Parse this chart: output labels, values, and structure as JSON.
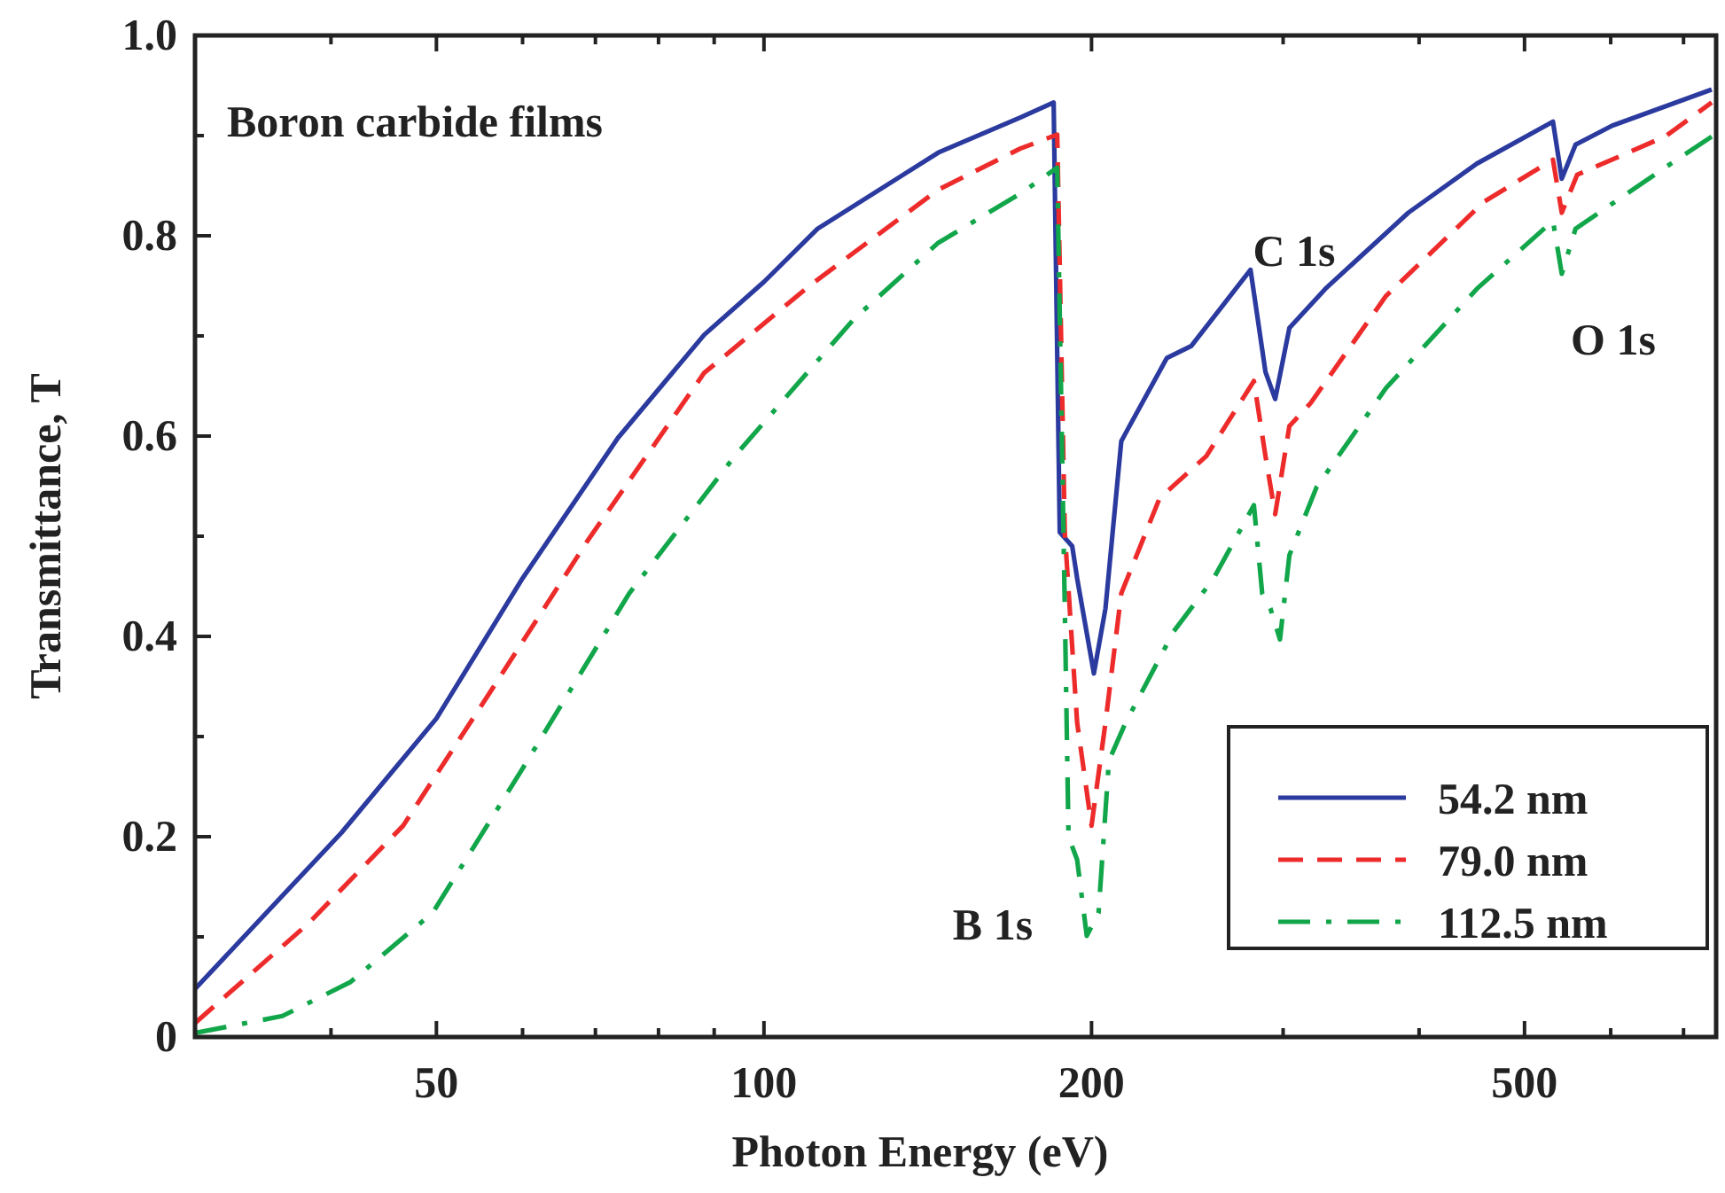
{
  "chart_data": {
    "type": "line",
    "title": "Boron carbide films",
    "xlabel": "Photon Energy (eV)",
    "ylabel": "Transmittance, T",
    "log": "x",
    "grid": false,
    "legend": "bottom right",
    "xlim": [
      30,
      750
    ],
    "xticks": [
      {
        "value": 30,
        "label": null
      },
      {
        "value": 40,
        "label": null
      },
      50,
      {
        "value": 60,
        "label": null
      },
      {
        "value": 70,
        "label": null
      },
      {
        "value": 80,
        "label": null
      },
      {
        "value": 90,
        "label": null
      },
      100,
      200,
      {
        "value": 300,
        "label": null
      },
      {
        "value": 400,
        "label": null
      },
      500,
      {
        "value": 600,
        "label": null
      },
      {
        "value": 700,
        "label": null
      }
    ],
    "ylim": [
      0,
      1
    ],
    "yticks": [
      0,
      {
        "value": 0.1,
        "label": null
      },
      0.2,
      {
        "value": 0.3,
        "label": null
      },
      0.4,
      {
        "value": 0.5,
        "label": null
      },
      0.6,
      {
        "value": 0.7,
        "label": null
      },
      0.8,
      {
        "value": 0.9,
        "label": null
      },
      {
        "value": 1,
        "label": "1.0"
      }
    ],
    "annotations": [
      "B 1s",
      "C 1s",
      "O 1s"
    ],
    "series": [
      {
        "name": "54.2 nm",
        "color": "#2b3a9e",
        "line_style": "solid",
        "x": [
          30,
          40.9,
          50,
          60,
          73.4,
          88.1,
          100,
          112,
          144.6,
          172,
          184.6,
          187,
          192,
          194,
          201,
          206,
          213,
          234.6,
          247,
          280,
          289,
          295,
          304,
          328,
          391,
          452,
          531,
          541,
          557,
          602,
          743
        ],
        "values": [
          0.048,
          0.204,
          0.318,
          0.458,
          0.598,
          0.701,
          0.754,
          0.807,
          0.883,
          0.918,
          0.933,
          0.504,
          0.49,
          0.458,
          0.363,
          0.428,
          0.595,
          0.678,
          0.69,
          0.766,
          0.664,
          0.637,
          0.708,
          0.747,
          0.823,
          0.872,
          0.914,
          0.857,
          0.891,
          0.91,
          0.946
        ]
      },
      {
        "name": "79.0 nm",
        "color": "#ee2b2b",
        "line_style": "dashed",
        "x": [
          30,
          38.1,
          46.6,
          56.3,
          68.9,
          88.1,
          110.4,
          144.6,
          172,
          186,
          189,
          194,
          200,
          206,
          213,
          231,
          255,
          282,
          289,
          295,
          304,
          318,
          373,
          459,
          531,
          541,
          559,
          673,
          743
        ],
        "values": [
          0.014,
          0.113,
          0.211,
          0.348,
          0.496,
          0.663,
          0.751,
          0.846,
          0.887,
          0.901,
          0.504,
          0.314,
          0.211,
          0.314,
          0.443,
          0.538,
          0.58,
          0.655,
          0.58,
          0.522,
          0.61,
          0.633,
          0.74,
          0.834,
          0.876,
          0.823,
          0.861,
          0.899,
          0.933
        ]
      },
      {
        "name": "112.5 nm",
        "color": "#12a64a",
        "line_style": "dashed",
        "x": [
          30,
          36.1,
          41.7,
          49.6,
          60,
          75.2,
          94,
          121,
          144.6,
          172,
          186,
          189,
          190.5,
          194,
          198,
          203,
          207.5,
          215,
          238,
          259,
          282,
          287,
          292,
          298,
          304,
          322,
          373,
          452,
          531,
          541,
          557,
          673,
          743
        ],
        "values": [
          0.004,
          0.021,
          0.055,
          0.124,
          0.268,
          0.443,
          0.58,
          0.717,
          0.793,
          0.842,
          0.868,
          0.428,
          0.2,
          0.177,
          0.101,
          0.124,
          0.276,
          0.314,
          0.405,
          0.458,
          0.531,
          0.443,
          0.428,
          0.397,
          0.481,
          0.549,
          0.648,
          0.747,
          0.815,
          0.762,
          0.807,
          0.868,
          0.899
        ]
      }
    ]
  }
}
